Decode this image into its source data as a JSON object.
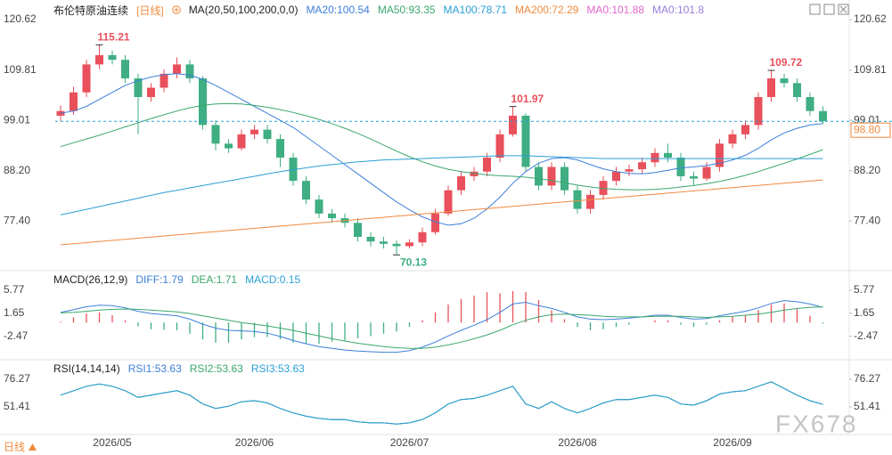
{
  "chart_data": [
    {
      "type": "candlestick",
      "title": "布伦特原油连续",
      "period": "[日线]",
      "indicator": "MA(20,50,100,200,0,0)",
      "categories": [
        null,
        null,
        null,
        null,
        "2026/05",
        null,
        null,
        null,
        null,
        null,
        null,
        null,
        null,
        null,
        null,
        "2026/06",
        null,
        null,
        null,
        null,
        null,
        null,
        null,
        null,
        null,
        null,
        null,
        "2026/07",
        null,
        null,
        null,
        null,
        null,
        null,
        null,
        null,
        null,
        null,
        null,
        null,
        "2026/08",
        null,
        null,
        null,
        null,
        null,
        null,
        null,
        null,
        null,
        null,
        null,
        "2026/09",
        null,
        null,
        null,
        null,
        null,
        null,
        null
      ],
      "open": [
        100,
        101,
        105,
        111,
        113,
        112,
        108,
        104,
        106,
        109,
        111,
        108,
        98,
        94,
        93,
        96,
        97,
        95,
        91,
        86,
        82,
        79,
        78,
        77,
        74,
        73,
        72.5,
        72,
        72.8,
        75,
        79,
        84,
        87,
        88,
        91,
        96,
        100,
        89,
        85,
        89,
        84,
        80,
        83,
        86,
        88,
        88.5,
        90,
        92,
        91,
        87,
        86.5,
        89,
        94,
        96,
        98,
        104,
        108,
        107,
        104,
        101
      ],
      "high": [
        102.2,
        106.2,
        112,
        115.21,
        114,
        113,
        109,
        107,
        110,
        112.5,
        112,
        108.5,
        99,
        95,
        97,
        98,
        98,
        96,
        92,
        87,
        83,
        80,
        79,
        78,
        75,
        74,
        73.2,
        73.5,
        76,
        80,
        85,
        88,
        89,
        92,
        97,
        101.97,
        100.5,
        90,
        90,
        90,
        85,
        84,
        87,
        89,
        89.5,
        91,
        93,
        94,
        92,
        88,
        90,
        95,
        97,
        99,
        105,
        109.72,
        109,
        108,
        105,
        102
      ],
      "low": [
        98.8,
        100.2,
        104,
        110,
        111,
        107,
        96,
        103,
        105,
        108,
        107,
        97,
        92.5,
        92,
        92.5,
        95,
        94,
        89,
        85,
        81,
        78,
        77,
        76,
        73,
        72,
        71.5,
        70.13,
        71.5,
        72,
        74.5,
        78.5,
        83,
        86,
        87,
        90,
        95.5,
        88,
        84,
        84,
        83,
        79,
        79,
        82,
        85,
        87,
        87.5,
        89,
        90,
        86,
        85,
        86,
        88,
        93,
        95,
        97,
        103,
        106,
        103,
        100,
        98.2
      ],
      "close": [
        101,
        105,
        111,
        113,
        112,
        108,
        104,
        106,
        109,
        111,
        108,
        98,
        94,
        93,
        96,
        97,
        95,
        91,
        86,
        82,
        79,
        78,
        77,
        74,
        73,
        72.5,
        72,
        72.8,
        75,
        79,
        84,
        87,
        88,
        91,
        96,
        100,
        89,
        85,
        89,
        84,
        80,
        83,
        86,
        88,
        88.5,
        90,
        92,
        91,
        87,
        86.5,
        89,
        94,
        96,
        98,
        104,
        108,
        107,
        104,
        101,
        98.8
      ],
      "last_label": "98.80",
      "up_color": "#e8505b",
      "down_color": "#3fae82",
      "last_color": "#f08a3e",
      "ylim": [
        67.5,
        123.3
      ],
      "yticks": [
        {
          "value": 77.4,
          "label": "77.40"
        },
        {
          "value": 88.2,
          "label": "88.20"
        },
        99.01,
        109.81,
        120.62
      ],
      "series": [
        {
          "name": "MA20:100.54",
          "color": "#3d7fd9",
          "values": [
            100.54,
            101,
            102,
            103.5,
            105,
            106.5,
            107.5,
            108.3,
            108.8,
            109,
            108.7,
            107.8,
            106.5,
            105,
            103.5,
            102,
            100.5,
            99,
            97.5,
            95.5,
            93.5,
            91.5,
            89.5,
            87.5,
            85.5,
            83.5,
            81.5,
            79.8,
            78.3,
            77.2,
            76.5,
            76.8,
            78,
            80,
            82.5,
            85.5,
            88,
            89.8,
            90.8,
            91,
            90.5,
            89.5,
            88.6,
            88,
            87.6,
            87.5,
            87.8,
            88.3,
            88.8,
            89,
            89.3,
            89.8,
            90.5,
            91.5,
            93,
            94.8,
            96.3,
            97.3,
            98,
            98.3
          ]
        },
        {
          "name": "MA50:93.35",
          "color": "#3aa76d",
          "values": [
            93.35,
            94.2,
            95,
            95.8,
            96.7,
            97.6,
            98.5,
            99.4,
            100.2,
            101,
            101.7,
            102.2,
            102.5,
            102.6,
            102.5,
            102.2,
            101.8,
            101.3,
            100.7,
            100,
            99.2,
            98.3,
            97.3,
            96.2,
            95,
            93.7,
            92.4,
            91.2,
            90.1,
            89.2,
            88.5,
            88,
            87.6,
            87.3,
            87.1,
            87,
            86.8,
            86.5,
            86.1,
            85.6,
            85.1,
            84.7,
            84.4,
            84.2,
            84.1,
            84.1,
            84.2,
            84.4,
            84.7,
            85,
            85.4,
            85.9,
            86.5,
            87.2,
            88,
            88.9,
            89.8,
            90.7,
            91.7,
            92.7
          ]
        },
        {
          "name": "MA100:78.71",
          "color": "#2a9fd6",
          "values": [
            78.71,
            79.3,
            79.9,
            80.5,
            81.1,
            81.7,
            82.3,
            82.9,
            83.5,
            84,
            84.5,
            85,
            85.5,
            86,
            86.5,
            87,
            87.5,
            88,
            88.4,
            88.8,
            89.2,
            89.5,
            89.8,
            90.1,
            90.3,
            90.5,
            90.6,
            90.7,
            90.8,
            90.9,
            91,
            91.1,
            91.2,
            91.3,
            91.4,
            91.4,
            91.4,
            91.3,
            91.2,
            91.1,
            91,
            90.9,
            90.8,
            90.8,
            90.8,
            90.8,
            90.8,
            90.8,
            90.8,
            90.8,
            90.8,
            90.8,
            90.8,
            90.8,
            90.8,
            90.8,
            90.8,
            90.8,
            90.8,
            90.8
          ]
        },
        {
          "name": "MA200:72.29",
          "color": "#f08a3e",
          "values": [
            72.29,
            72.53,
            72.76,
            73.0,
            73.23,
            73.47,
            73.71,
            73.94,
            74.18,
            74.41,
            74.65,
            74.89,
            75.12,
            75.36,
            75.59,
            75.83,
            76.07,
            76.3,
            76.54,
            76.77,
            77.01,
            77.25,
            77.48,
            77.72,
            77.95,
            78.19,
            78.43,
            78.66,
            78.9,
            79.13,
            79.37,
            79.61,
            79.84,
            80.08,
            80.31,
            80.55,
            80.79,
            81.02,
            81.26,
            81.49,
            81.73,
            81.97,
            82.2,
            82.44,
            82.67,
            82.91,
            83.15,
            83.38,
            83.62,
            83.85,
            84.09,
            84.33,
            84.56,
            84.8,
            85.03,
            85.27,
            85.51,
            85.74,
            85.98,
            86.21
          ]
        }
      ],
      "legend_extra": [
        {
          "name": "MA0:101.88",
          "color": "#e066c8"
        },
        {
          "name": "MA0:101.8",
          "color": "#9a7ee0"
        }
      ]
    },
    {
      "type": "macd",
      "title": "MACD(26,12,9)",
      "ylim": [
        -6,
        8.6
      ],
      "yticks": [
        -2.47,
        1.65,
        5.77
      ],
      "series": [
        {
          "name": "DIFF:1.79",
          "color": "#3d7fd9",
          "values": [
            1.79,
            2.3,
            2.8,
            3.1,
            3.0,
            2.6,
            2.0,
            1.6,
            1.4,
            1.2,
            0.6,
            -0.3,
            -1.0,
            -1.4,
            -1.5,
            -1.6,
            -1.9,
            -2.5,
            -3.2,
            -3.8,
            -4.3,
            -4.6,
            -4.9,
            -5.1,
            -5.2,
            -5.3,
            -5.3,
            -5.0,
            -4.4,
            -3.5,
            -2.4,
            -1.4,
            -0.5,
            0.5,
            1.8,
            3.3,
            3.6,
            3.0,
            2.5,
            1.8,
            1.0,
            0.6,
            0.5,
            0.6,
            0.8,
            1.0,
            1.3,
            1.3,
            0.9,
            0.6,
            0.7,
            1.2,
            1.6,
            2.0,
            2.6,
            3.4,
            3.9,
            3.7,
            3.3,
            2.7
          ]
        },
        {
          "name": "DEA:1.71",
          "color": "#3aa76d",
          "values": [
            1.71,
            1.83,
            2.0,
            2.2,
            2.35,
            2.4,
            2.35,
            2.2,
            2.05,
            1.9,
            1.6,
            1.2,
            0.8,
            0.4,
            0.0,
            -0.3,
            -0.6,
            -1.0,
            -1.4,
            -1.9,
            -2.4,
            -2.9,
            -3.3,
            -3.7,
            -4.0,
            -4.3,
            -4.5,
            -4.6,
            -4.6,
            -4.4,
            -4.0,
            -3.5,
            -2.9,
            -2.2,
            -1.4,
            -0.4,
            0.4,
            1.0,
            1.4,
            1.5,
            1.4,
            1.3,
            1.1,
            1.0,
            1.0,
            1.0,
            1.1,
            1.1,
            1.1,
            1.0,
            0.9,
            1.0,
            1.1,
            1.3,
            1.5,
            1.8,
            2.2,
            2.5,
            2.7,
            2.8
          ]
        },
        {
          "name": "MACD:0.15",
          "color": "#2a9fd6",
          "bars": true,
          "values": [
            0.15,
            0.94,
            1.6,
            1.8,
            1.3,
            0.4,
            -0.7,
            -1.2,
            -1.3,
            -1.4,
            -2.0,
            -3.0,
            -3.6,
            -3.6,
            -3.0,
            -2.6,
            -2.6,
            -3.0,
            -3.6,
            -3.8,
            -3.8,
            -3.4,
            -3.2,
            -2.8,
            -2.4,
            -2.0,
            -1.6,
            -0.8,
            0.4,
            1.8,
            3.2,
            4.2,
            4.8,
            5.4,
            5.2,
            5.6,
            5.4,
            4.0,
            2.2,
            0.6,
            -0.8,
            -1.4,
            -1.2,
            -0.8,
            -0.4,
            0.0,
            0.4,
            0.4,
            -0.4,
            -0.8,
            -0.4,
            0.4,
            1.0,
            1.4,
            2.2,
            3.2,
            3.4,
            2.4,
            1.2,
            -0.2
          ]
        }
      ],
      "up_color": "#e8505b",
      "down_color": "#3fae82"
    },
    {
      "type": "line",
      "title": "RSI(14,14,14)",
      "ylim": [
        26.5,
        90.7
      ],
      "yticks": [
        51.41,
        76.27
      ],
      "series": [
        {
          "name": "RSI1:53.63",
          "color": "#3d7fd9",
          "values": [
            62,
            66,
            70,
            72,
            70,
            66,
            60,
            62,
            64,
            66,
            62,
            54,
            50,
            52,
            56,
            57,
            55,
            50,
            46,
            43,
            41,
            40,
            40,
            38,
            37,
            37,
            36,
            37,
            40,
            46,
            54,
            58,
            59,
            62,
            66,
            70,
            54,
            50,
            56,
            50,
            46,
            50,
            55,
            58,
            58,
            60,
            62,
            60,
            54,
            53,
            57,
            63,
            65,
            66,
            70,
            74,
            68,
            62,
            57,
            53.63
          ]
        },
        {
          "name": "RSI2:53.63",
          "color": "#3aa76d",
          "values": [
            62,
            66,
            70,
            72,
            70,
            66,
            60,
            62,
            64,
            66,
            62,
            54,
            50,
            52,
            56,
            57,
            55,
            50,
            46,
            43,
            41,
            40,
            40,
            38,
            37,
            37,
            36,
            37,
            40,
            46,
            54,
            58,
            59,
            62,
            66,
            70,
            54,
            50,
            56,
            50,
            46,
            50,
            55,
            58,
            58,
            60,
            62,
            60,
            54,
            53,
            57,
            63,
            65,
            66,
            70,
            74,
            68,
            62,
            57,
            53.63
          ]
        },
        {
          "name": "RSI3:53.63",
          "color": "#2a9fd6",
          "values": [
            62,
            66,
            70,
            72,
            70,
            66,
            60,
            62,
            64,
            66,
            62,
            54,
            50,
            52,
            56,
            57,
            55,
            50,
            46,
            43,
            41,
            40,
            40,
            38,
            37,
            37,
            36,
            37,
            40,
            46,
            54,
            58,
            59,
            62,
            66,
            70,
            54,
            50,
            56,
            50,
            46,
            50,
            55,
            58,
            58,
            60,
            62,
            60,
            54,
            53,
            57,
            63,
            65,
            66,
            70,
            74,
            68,
            62,
            57,
            53.63
          ]
        }
      ]
    }
  ],
  "footer": {
    "period": "日线",
    "watermark": "FX678"
  }
}
